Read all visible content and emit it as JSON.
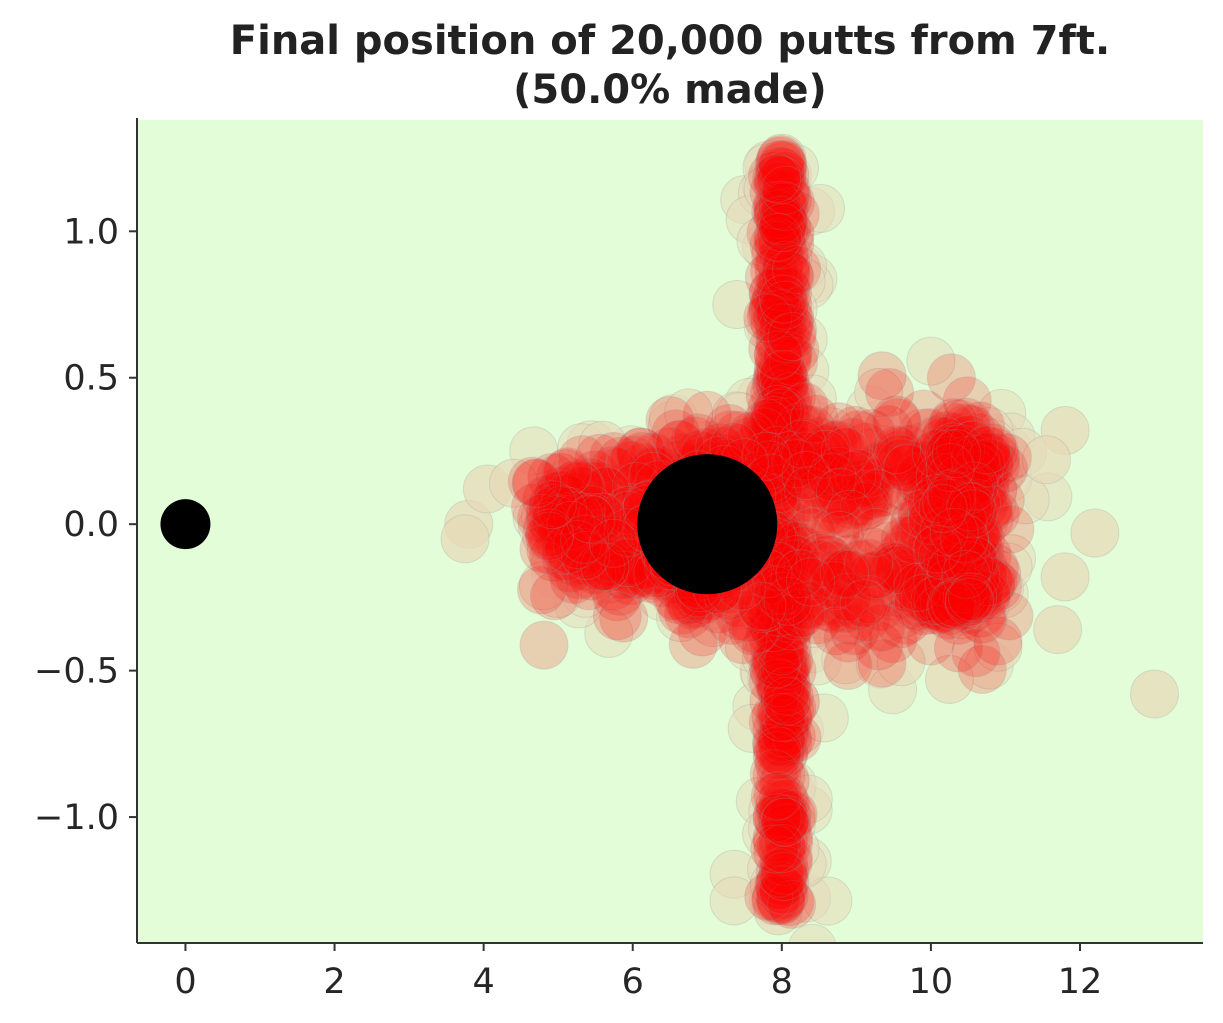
{
  "chart_data": {
    "type": "scatter",
    "title": "Final position of 20,000 putts from 7ft.",
    "subtitle": "(50.0% made)",
    "xlabel": "",
    "ylabel": "",
    "xlim": [
      -0.65,
      13.65
    ],
    "ylim": [
      -1.43,
      1.38
    ],
    "x_ticks": [
      0,
      2,
      4,
      6,
      8,
      10,
      12
    ],
    "y_ticks": [
      -1.0,
      -0.5,
      0.0,
      0.5,
      1.0
    ],
    "y_tick_labels": [
      "−1.0",
      "−0.5",
      "0.0",
      "0.5",
      "1.0"
    ],
    "grid": false,
    "background_color": "#e2fdd8",
    "point_color_made": "#ff0000",
    "point_color_missed": "#e6d9b8",
    "origin_marker": {
      "x": 0,
      "y": 0,
      "color": "#000000"
    },
    "hole_marker": {
      "x": 7,
      "y": 0,
      "color": "#000000"
    },
    "clusters": [
      {
        "name": "vertical-band",
        "x_center": 8.0,
        "x_spread": 0.18,
        "y_min": -1.3,
        "y_max": 1.25
      },
      {
        "name": "upper-wing",
        "x_start": 4.8,
        "x_end": 10.9,
        "y_center": 0.2,
        "spread": 0.1
      },
      {
        "name": "lower-wing",
        "x_start": 4.8,
        "x_end": 10.9,
        "y_center": -0.2,
        "spread": 0.1
      },
      {
        "name": "right-cap",
        "x_center": 10.4,
        "x_spread": 0.4,
        "y_min": -0.3,
        "y_max": 0.3
      }
    ],
    "outliers": [
      {
        "x": 13.0,
        "y": -0.58
      },
      {
        "x": 12.2,
        "y": -0.03
      },
      {
        "x": 11.8,
        "y": 0.32
      },
      {
        "x": 11.7,
        "y": -0.36
      },
      {
        "x": 11.8,
        "y": -0.18
      },
      {
        "x": 10.25,
        "y": -0.53
      },
      {
        "x": 3.8,
        "y": 0.0
      },
      {
        "x": 3.75,
        "y": -0.05
      },
      {
        "x": 4.05,
        "y": 0.12
      },
      {
        "x": 4.4,
        "y": 0.14
      },
      {
        "x": 4.8,
        "y": -0.21
      },
      {
        "x": 5.6,
        "y": 0.27
      },
      {
        "x": 6.75,
        "y": 0.38
      },
      {
        "x": 7.95,
        "y": -1.32
      },
      {
        "x": 7.9,
        "y": -1.23
      },
      {
        "x": 8.0,
        "y": 1.25
      },
      {
        "x": 9.3,
        "y": 0.45
      },
      {
        "x": 9.6,
        "y": -0.47
      },
      {
        "x": 10.9,
        "y": -0.42
      },
      {
        "x": 11.55,
        "y": 0.22
      }
    ]
  }
}
